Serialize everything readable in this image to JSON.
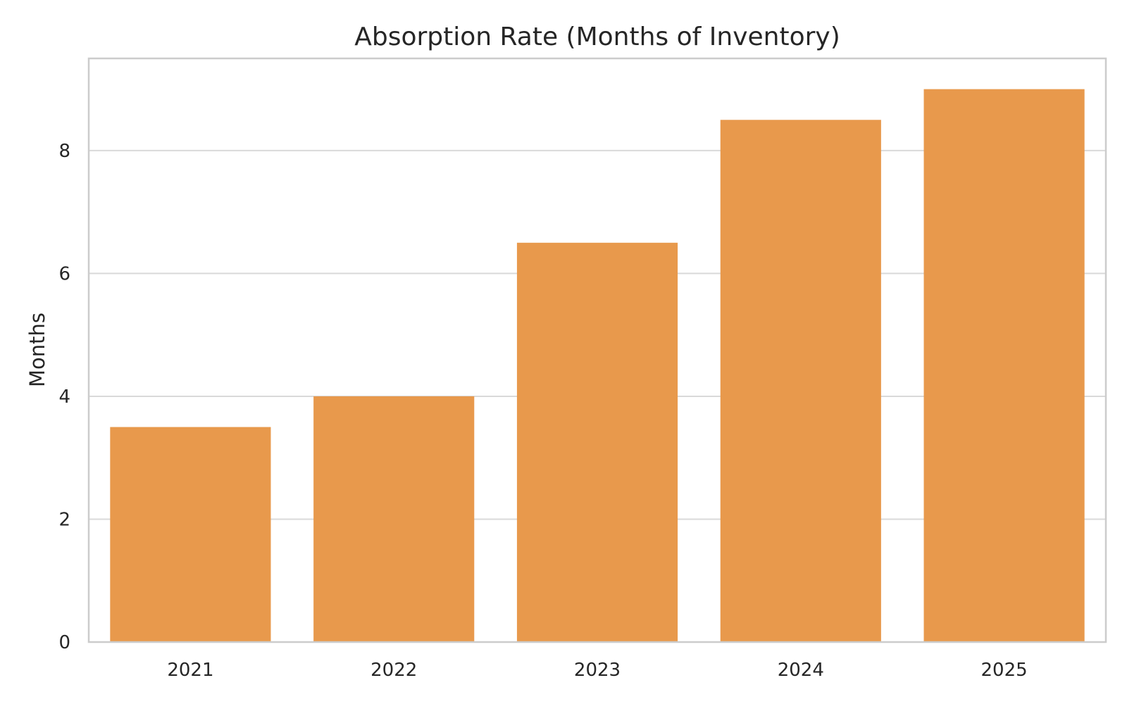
{
  "chart_data": {
    "type": "bar",
    "title": "Absorption Rate (Months of Inventory)",
    "xlabel": "",
    "ylabel": "Months",
    "categories": [
      "2021",
      "2022",
      "2023",
      "2024",
      "2025"
    ],
    "values": [
      3.5,
      4.0,
      6.5,
      8.5,
      9.0
    ],
    "ylim": [
      0,
      9.5
    ],
    "yticks": [
      0,
      2,
      4,
      6,
      8
    ],
    "grid": "horizontal",
    "legend": "none",
    "colors": {
      "bar": "#e8994c",
      "grid": "#d9d9d9",
      "frame": "#cccccc",
      "text": "#262626"
    }
  }
}
